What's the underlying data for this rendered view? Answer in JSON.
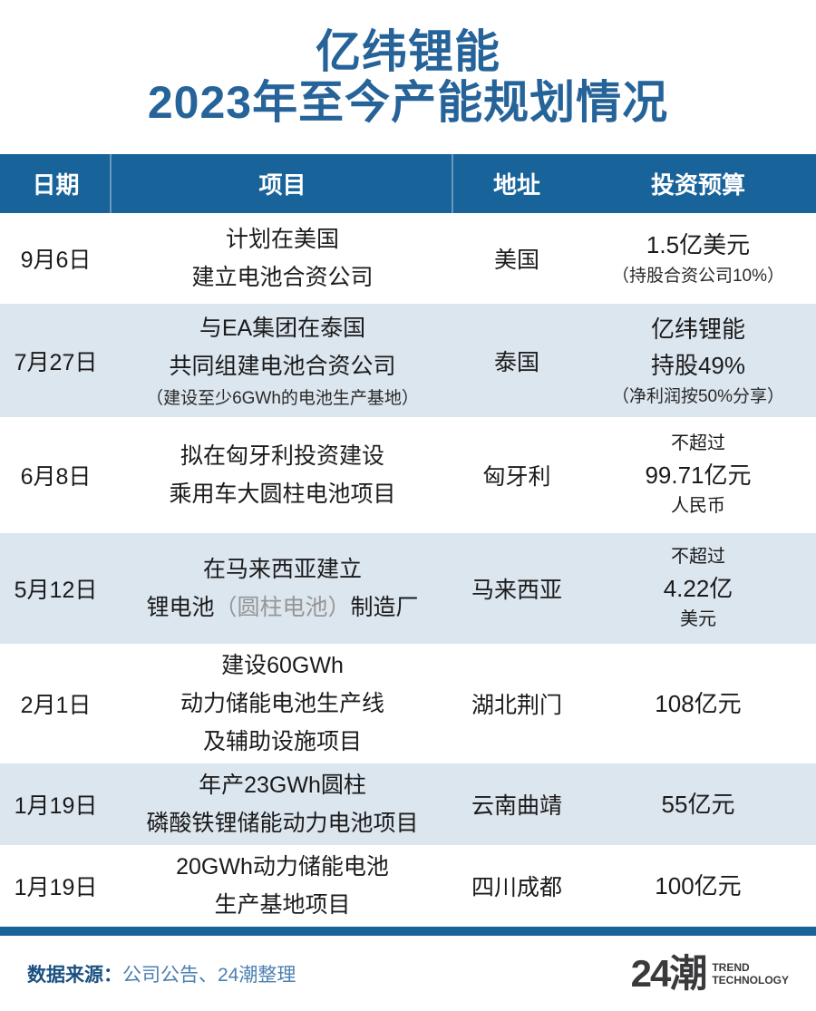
{
  "title": {
    "line1": "亿纬锂能",
    "line2": "2023年至今产能规划情况"
  },
  "table": {
    "headers": [
      "日期",
      "项目",
      "地址",
      "投资预算"
    ],
    "rows": [
      {
        "date": "9月6日",
        "project": {
          "l1": "计划在美国",
          "l2": "建立电池合资公司"
        },
        "address": "美国",
        "budget": {
          "main": "1.5亿美元",
          "note": "（持股合资公司10%）"
        }
      },
      {
        "date": "7月27日",
        "project": {
          "l1": "与EA集团在泰国",
          "l2": "共同组建电池合资公司",
          "note": "（建设至少6GWh的电池生产基地）"
        },
        "address": "泰国",
        "budget": {
          "main": "亿纬锂能",
          "main2": "持股49%",
          "note": "（净利润按50%分享）"
        }
      },
      {
        "date": "6月8日",
        "project": {
          "l1": "拟在匈牙利投资建设",
          "l2": "乘用车大圆柱电池项目"
        },
        "address": "匈牙利",
        "budget": {
          "pre": "不超过",
          "main": "99.71亿元",
          "post": "人民币"
        }
      },
      {
        "date": "5月12日",
        "project": {
          "l1": "在马来西亚建立",
          "l2a": "锂电池",
          "l2b": "（圆柱电池）",
          "l2c": "制造厂"
        },
        "address": "马来西亚",
        "budget": {
          "pre": "不超过",
          "main": "4.22亿",
          "post": "美元"
        }
      },
      {
        "date": "2月1日",
        "project": {
          "l1": "建设60GWh",
          "l2": "动力储能电池生产线",
          "l3": "及辅助设施项目"
        },
        "address": "湖北荆门",
        "budget": {
          "main": "108亿元"
        }
      },
      {
        "date": "1月19日",
        "project": {
          "l1": "年产23GWh圆柱",
          "l2": "磷酸铁锂储能动力电池项目"
        },
        "address": "云南曲靖",
        "budget": {
          "main": "55亿元"
        }
      },
      {
        "date": "1月19日",
        "project": {
          "l1": "20GWh动力储能电池",
          "l2": "生产基地项目"
        },
        "address": "四川成都",
        "budget": {
          "main": "100亿元"
        }
      }
    ]
  },
  "footer": {
    "source_label": "数据来源：",
    "source_text": "公司公告、24潮整理",
    "logo_text": "24潮",
    "logo_sub1": "TREND",
    "logo_sub2": "TECHNOLOGY"
  },
  "colors": {
    "header_bg": "#17639A",
    "alt_row_bg": "#DCE6EF",
    "title_text": "#266399",
    "body_text": "#1B1B1B",
    "muted_text": "#969696",
    "source_label": "#1B5181",
    "source_text": "#4D80B0",
    "logo_text": "#3A3A3C"
  },
  "chart_data": {
    "type": "table",
    "title": "亿纬锂能 2023年至今产能规划情况",
    "columns": [
      "日期",
      "项目",
      "地址",
      "投资预算"
    ],
    "rows": [
      [
        "9月6日",
        "计划在美国建立电池合资公司",
        "美国",
        "1.5亿美元（持股合资公司10%）"
      ],
      [
        "7月27日",
        "与EA集团在泰国共同组建电池合资公司（建设至少6GWh的电池生产基地）",
        "泰国",
        "亿纬锂能持股49%（净利润按50%分享）"
      ],
      [
        "6月8日",
        "拟在匈牙利投资建设乘用车大圆柱电池项目",
        "匈牙利",
        "不超过99.71亿元人民币"
      ],
      [
        "5月12日",
        "在马来西亚建立锂电池（圆柱电池）制造厂",
        "马来西亚",
        "不超过4.22亿美元"
      ],
      [
        "2月1日",
        "建设60GWh动力储能电池生产线及辅助设施项目",
        "湖北荆门",
        "108亿元"
      ],
      [
        "1月19日",
        "年产23GWh圆柱磷酸铁锂储能动力电池项目",
        "云南曲靖",
        "55亿元"
      ],
      [
        "1月19日",
        "20GWh动力储能电池生产基地项目",
        "四川成都",
        "100亿元"
      ]
    ],
    "source": "公司公告、24潮整理"
  }
}
